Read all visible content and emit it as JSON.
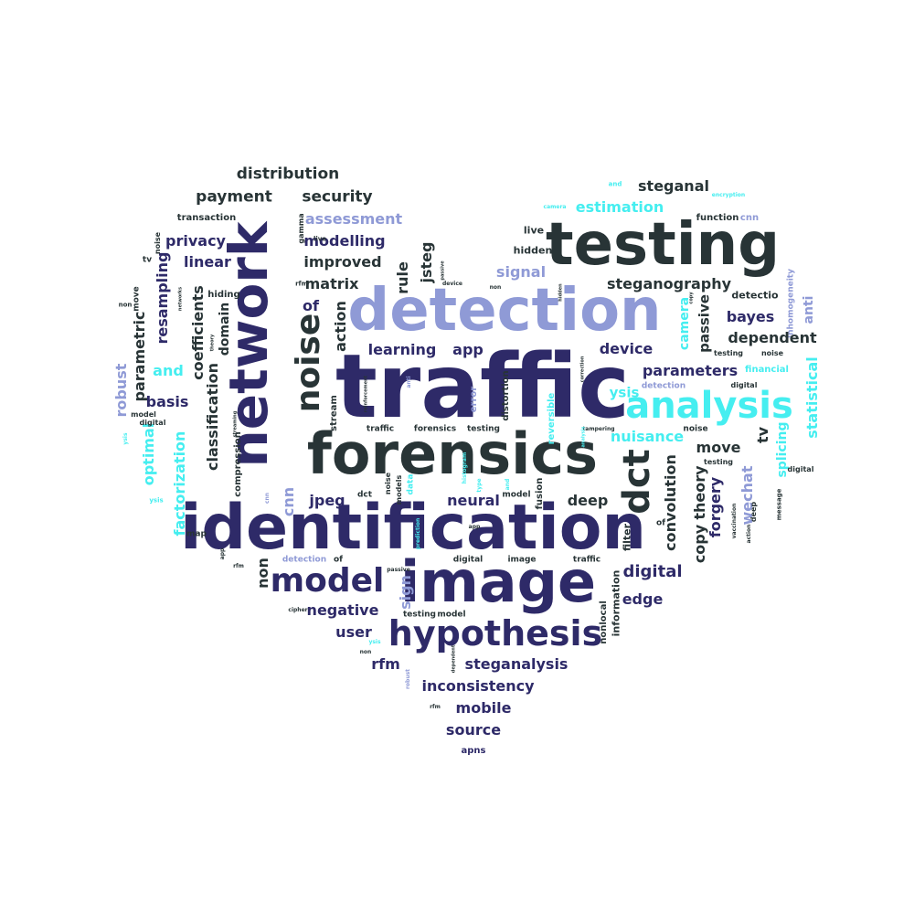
{
  "palette": {
    "navy": "#2e2a68",
    "dark": "#283436",
    "periwinkle": "#8f9ad6",
    "cyan": "#45eef0"
  },
  "words": [
    {
      "text": "traffic",
      "color": "navy",
      "size": 96,
      "rotated": false
    },
    {
      "text": "identification",
      "color": "navy",
      "size": 68,
      "rotated": false
    },
    {
      "text": "image",
      "color": "navy",
      "size": 62,
      "rotated": false
    },
    {
      "text": "forensics",
      "color": "dark",
      "size": 62,
      "rotated": false
    },
    {
      "text": "detection",
      "color": "periwinkle",
      "size": 64,
      "rotated": false
    },
    {
      "text": "testing",
      "color": "dark",
      "size": 64,
      "rotated": false
    },
    {
      "text": "network",
      "color": "navy",
      "size": 58,
      "rotated": true
    },
    {
      "text": "hypothesis",
      "color": "navy",
      "size": 38,
      "rotated": false
    },
    {
      "text": "model",
      "color": "navy",
      "size": 36,
      "rotated": false
    },
    {
      "text": "analysis",
      "color": "cyan",
      "size": 40,
      "rotated": false
    },
    {
      "text": "noise",
      "color": "dark",
      "size": 36,
      "rotated": true
    },
    {
      "text": "dct",
      "color": "dark",
      "size": 40,
      "rotated": true
    },
    {
      "text": "distribution",
      "color": "dark",
      "size": 17,
      "rotated": false
    },
    {
      "text": "payment",
      "color": "dark",
      "size": 17,
      "rotated": false
    },
    {
      "text": "security",
      "color": "dark",
      "size": 17,
      "rotated": false
    },
    {
      "text": "assessment",
      "color": "periwinkle",
      "size": 16,
      "rotated": false
    },
    {
      "text": "transaction",
      "color": "dark",
      "size": 10,
      "rotated": false
    },
    {
      "text": "privacy",
      "color": "navy",
      "size": 16,
      "rotated": false
    },
    {
      "text": "modelling",
      "color": "navy",
      "size": 16,
      "rotated": false
    },
    {
      "text": "improved",
      "color": "dark",
      "size": 16,
      "rotated": false
    },
    {
      "text": "linear",
      "color": "navy",
      "size": 16,
      "rotated": false
    },
    {
      "text": "matrix",
      "color": "dark",
      "size": 16,
      "rotated": false
    },
    {
      "text": "jsteg",
      "color": "dark",
      "size": 16,
      "rotated": true
    },
    {
      "text": "rule",
      "color": "dark",
      "size": 16,
      "rotated": true
    },
    {
      "text": "hiding",
      "color": "dark",
      "size": 10,
      "rotated": false
    },
    {
      "text": "coefficients",
      "color": "dark",
      "size": 16,
      "rotated": true
    },
    {
      "text": "resampling",
      "color": "navy",
      "size": 16,
      "rotated": true
    },
    {
      "text": "parametric",
      "color": "dark",
      "size": 16,
      "rotated": true
    },
    {
      "text": "domain",
      "color": "dark",
      "size": 14,
      "rotated": true
    },
    {
      "text": "classification",
      "color": "dark",
      "size": 16,
      "rotated": true
    },
    {
      "text": "and",
      "color": "cyan",
      "size": 16,
      "rotated": false
    },
    {
      "text": "robust",
      "color": "periwinkle",
      "size": 16,
      "rotated": true
    },
    {
      "text": "basis",
      "color": "navy",
      "size": 16,
      "rotated": false
    },
    {
      "text": "factorization",
      "color": "cyan",
      "size": 16,
      "rotated": true
    },
    {
      "text": "optimal",
      "color": "cyan",
      "size": 16,
      "rotated": true
    },
    {
      "text": "of",
      "color": "navy",
      "size": 16,
      "rotated": false
    },
    {
      "text": "action",
      "color": "dark",
      "size": 16,
      "rotated": true
    },
    {
      "text": "learning",
      "color": "navy",
      "size": 16,
      "rotated": false
    },
    {
      "text": "app",
      "color": "navy",
      "size": 16,
      "rotated": false
    },
    {
      "text": "signal",
      "color": "periwinkle",
      "size": 16,
      "rotated": false
    },
    {
      "text": "steganography",
      "color": "dark",
      "size": 16,
      "rotated": false
    },
    {
      "text": "estimation",
      "color": "cyan",
      "size": 16,
      "rotated": false
    },
    {
      "text": "steganal",
      "color": "dark",
      "size": 16,
      "rotated": false
    },
    {
      "text": "live",
      "color": "dark",
      "size": 11,
      "rotated": false
    },
    {
      "text": "hidden",
      "color": "dark",
      "size": 11,
      "rotated": false
    },
    {
      "text": "function",
      "color": "dark",
      "size": 10,
      "rotated": false
    },
    {
      "text": "cnn",
      "color": "periwinkle",
      "size": 10,
      "rotated": false
    },
    {
      "text": "inhomogeneity",
      "color": "periwinkle",
      "size": 9,
      "rotated": true
    },
    {
      "text": "anti",
      "color": "periwinkle",
      "size": 14,
      "rotated": true
    },
    {
      "text": "detectio",
      "color": "dark",
      "size": 11,
      "rotated": false
    },
    {
      "text": "camera",
      "color": "cyan",
      "size": 14,
      "rotated": true
    },
    {
      "text": "passive",
      "color": "dark",
      "size": 15,
      "rotated": true
    },
    {
      "text": "bayes",
      "color": "navy",
      "size": 16,
      "rotated": false
    },
    {
      "text": "dependent",
      "color": "dark",
      "size": 16,
      "rotated": false
    },
    {
      "text": "device",
      "color": "navy",
      "size": 16,
      "rotated": false
    },
    {
      "text": "parameters",
      "color": "navy",
      "size": 16,
      "rotated": false
    },
    {
      "text": "financial",
      "color": "cyan",
      "size": 10,
      "rotated": false
    },
    {
      "text": "statistical",
      "color": "cyan",
      "size": 16,
      "rotated": true
    },
    {
      "text": "ysis",
      "color": "cyan",
      "size": 15,
      "rotated": false
    },
    {
      "text": "nuisance",
      "color": "cyan",
      "size": 16,
      "rotated": false
    },
    {
      "text": "tv",
      "color": "dark",
      "size": 16,
      "rotated": true
    },
    {
      "text": "move",
      "color": "dark",
      "size": 16,
      "rotated": false
    },
    {
      "text": "splicing",
      "color": "cyan",
      "size": 14,
      "rotated": true
    },
    {
      "text": "convolution",
      "color": "dark",
      "size": 16,
      "rotated": true
    },
    {
      "text": "theory",
      "color": "dark",
      "size": 16,
      "rotated": true
    },
    {
      "text": "forgery",
      "color": "navy",
      "size": 16,
      "rotated": true
    },
    {
      "text": "wechat",
      "color": "periwinkle",
      "size": 16,
      "rotated": true
    },
    {
      "text": "copy",
      "color": "dark",
      "size": 16,
      "rotated": true
    },
    {
      "text": "deep",
      "color": "dark",
      "size": 16,
      "rotated": false
    },
    {
      "text": "neural",
      "color": "navy",
      "size": 16,
      "rotated": false
    },
    {
      "text": "jpeg",
      "color": "navy",
      "size": 16,
      "rotated": false
    },
    {
      "text": "cnn",
      "color": "periwinkle",
      "size": 16,
      "rotated": true
    },
    {
      "text": "digital",
      "color": "navy",
      "size": 18,
      "rotated": false
    },
    {
      "text": "edge",
      "color": "navy",
      "size": 16,
      "rotated": false
    },
    {
      "text": "negative",
      "color": "navy",
      "size": 16,
      "rotated": false
    },
    {
      "text": "user",
      "color": "navy",
      "size": 16,
      "rotated": false
    },
    {
      "text": "rfm",
      "color": "navy",
      "size": 16,
      "rotated": false
    },
    {
      "text": "steganalysis",
      "color": "navy",
      "size": 16,
      "rotated": false
    },
    {
      "text": "inconsistency",
      "color": "navy",
      "size": 16,
      "rotated": false
    },
    {
      "text": "mobile",
      "color": "navy",
      "size": 16,
      "rotated": false
    },
    {
      "text": "source",
      "color": "navy",
      "size": 16,
      "rotated": false
    },
    {
      "text": "apns",
      "color": "navy",
      "size": 10,
      "rotated": false
    },
    {
      "text": "non",
      "color": "dark",
      "size": 16,
      "rotated": true
    },
    {
      "text": "sign",
      "color": "periwinkle",
      "size": 16,
      "rotated": true
    },
    {
      "text": "information",
      "color": "dark",
      "size": 11,
      "rotated": true
    },
    {
      "text": "nonlocal",
      "color": "dark",
      "size": 10,
      "rotated": true
    },
    {
      "text": "filter",
      "color": "dark",
      "size": 11,
      "rotated": true
    },
    {
      "text": "error",
      "color": "periwinkle",
      "size": 10,
      "rotated": true
    },
    {
      "text": "distortion",
      "color": "dark",
      "size": 10,
      "rotated": true
    },
    {
      "text": "reversible",
      "color": "cyan",
      "size": 10,
      "rotated": true
    },
    {
      "text": "stream",
      "color": "dark",
      "size": 10,
      "rotated": true
    },
    {
      "text": "fusion",
      "color": "dark",
      "size": 10,
      "rotated": true
    },
    {
      "text": "compression",
      "color": "dark",
      "size": 10,
      "rotated": true
    },
    {
      "text": "testing",
      "color": "dark",
      "size": 9,
      "rotated": false
    },
    {
      "text": "forensics",
      "color": "dark",
      "size": 9,
      "rotated": false
    },
    {
      "text": "traffic",
      "color": "dark",
      "size": 9,
      "rotated": false
    },
    {
      "text": "noise",
      "color": "dark",
      "size": 9,
      "rotated": false
    },
    {
      "text": "detection",
      "color": "periwinkle",
      "size": 9,
      "rotated": false
    },
    {
      "text": "testing",
      "color": "dark",
      "size": 9,
      "rotated": false
    },
    {
      "text": "model",
      "color": "dark",
      "size": 9,
      "rotated": false
    },
    {
      "text": "digital",
      "color": "dark",
      "size": 9,
      "rotated": false
    },
    {
      "text": "image",
      "color": "dark",
      "size": 9,
      "rotated": false
    },
    {
      "text": "traffic",
      "color": "dark",
      "size": 9,
      "rotated": false
    },
    {
      "text": "detection",
      "color": "periwinkle",
      "size": 9,
      "rotated": false
    },
    {
      "text": "map",
      "color": "dark",
      "size": 9,
      "rotated": false
    },
    {
      "text": "dct",
      "color": "dark",
      "size": 9,
      "rotated": false
    },
    {
      "text": "model",
      "color": "dark",
      "size": 9,
      "rotated": false
    },
    {
      "text": "tv",
      "color": "dark",
      "size": 9,
      "rotated": false
    },
    {
      "text": "non",
      "color": "dark",
      "size": 7,
      "rotated": false
    },
    {
      "text": "move",
      "color": "dark",
      "size": 9,
      "rotated": true
    },
    {
      "text": "noise",
      "color": "dark",
      "size": 8,
      "rotated": true
    },
    {
      "text": "gamma",
      "color": "dark",
      "size": 8,
      "rotated": true
    },
    {
      "text": "live",
      "color": "dark",
      "size": 7,
      "rotated": false
    },
    {
      "text": "rfm",
      "color": "dark",
      "size": 7,
      "rotated": false
    },
    {
      "text": "of",
      "color": "dark",
      "size": 9,
      "rotated": false
    },
    {
      "text": "model",
      "color": "dark",
      "size": 8,
      "rotated": false
    },
    {
      "text": "digital",
      "color": "dark",
      "size": 8,
      "rotated": false
    },
    {
      "text": "ysis",
      "color": "cyan",
      "size": 7,
      "rotated": false
    },
    {
      "text": "and",
      "color": "cyan",
      "size": 7,
      "rotated": false
    },
    {
      "text": "encryption",
      "color": "cyan",
      "size": 6,
      "rotated": false
    },
    {
      "text": "camera",
      "color": "cyan",
      "size": 6,
      "rotated": false
    },
    {
      "text": "device",
      "color": "dark",
      "size": 6,
      "rotated": false
    },
    {
      "text": "non",
      "color": "dark",
      "size": 6,
      "rotated": false
    },
    {
      "text": "testing",
      "color": "dark",
      "size": 8,
      "rotated": false
    },
    {
      "text": "noise",
      "color": "dark",
      "size": 8,
      "rotated": false
    },
    {
      "text": "digital",
      "color": "dark",
      "size": 8,
      "rotated": false
    },
    {
      "text": "testing",
      "color": "dark",
      "size": 8,
      "rotated": false
    },
    {
      "text": "digital",
      "color": "dark",
      "size": 8,
      "rotated": false
    },
    {
      "text": "message",
      "color": "dark",
      "size": 7,
      "rotated": true
    },
    {
      "text": "deep",
      "color": "dark",
      "size": 8,
      "rotated": true
    },
    {
      "text": "vaccination",
      "color": "dark",
      "size": 6,
      "rotated": true
    },
    {
      "text": "action",
      "color": "dark",
      "size": 6,
      "rotated": true
    },
    {
      "text": "tampering",
      "color": "dark",
      "size": 6,
      "rotated": false
    },
    {
      "text": "of",
      "color": "dark",
      "size": 9,
      "rotated": false
    },
    {
      "text": "histogram",
      "color": "cyan",
      "size": 6,
      "rotated": true
    },
    {
      "text": "data",
      "color": "cyan",
      "size": 9,
      "rotated": true
    },
    {
      "text": "models",
      "color": "dark",
      "size": 8,
      "rotated": true
    },
    {
      "text": "noise",
      "color": "dark",
      "size": 8,
      "rotated": true
    },
    {
      "text": "prediction",
      "color": "cyan",
      "size": 6,
      "rotated": true
    },
    {
      "text": "app",
      "color": "dark",
      "size": 6,
      "rotated": false
    },
    {
      "text": "app",
      "color": "dark",
      "size": 6,
      "rotated": true
    },
    {
      "text": "rfm",
      "color": "dark",
      "size": 6,
      "rotated": false
    },
    {
      "text": "cipher",
      "color": "dark",
      "size": 6,
      "rotated": false
    },
    {
      "text": "ysis",
      "color": "cyan",
      "size": 6,
      "rotated": false
    },
    {
      "text": "non",
      "color": "dark",
      "size": 6,
      "rotated": false
    },
    {
      "text": "rfm",
      "color": "dark",
      "size": 6,
      "rotated": false
    },
    {
      "text": "passive",
      "color": "dark",
      "size": 6,
      "rotated": false
    },
    {
      "text": "robust",
      "color": "periwinkle",
      "size": 6,
      "rotated": true
    },
    {
      "text": "dependent",
      "color": "dark",
      "size": 5,
      "rotated": true
    },
    {
      "text": "ysis",
      "color": "cyan",
      "size": 6,
      "rotated": true
    },
    {
      "text": "streaming",
      "color": "dark",
      "size": 5,
      "rotated": true
    },
    {
      "text": "reinforcement",
      "color": "dark",
      "size": 5,
      "rotated": true
    },
    {
      "text": "theory",
      "color": "dark",
      "size": 5,
      "rotated": true
    },
    {
      "text": "analysis",
      "color": "cyan",
      "size": 5,
      "rotated": true
    },
    {
      "text": "correction",
      "color": "dark",
      "size": 5,
      "rotated": true
    },
    {
      "text": "hidden",
      "color": "dark",
      "size": 5,
      "rotated": true
    },
    {
      "text": "passive",
      "color": "dark",
      "size": 5,
      "rotated": true
    },
    {
      "text": "copy",
      "color": "dark",
      "size": 5,
      "rotated": true
    },
    {
      "text": "networks",
      "color": "dark",
      "size": 5,
      "rotated": true
    },
    {
      "text": "anti",
      "color": "periwinkle",
      "size": 6,
      "rotated": true
    },
    {
      "text": "cnn",
      "color": "periwinkle",
      "size": 6,
      "rotated": true
    },
    {
      "text": "type",
      "color": "cyan",
      "size": 6,
      "rotated": true
    },
    {
      "text": "and",
      "color": "cyan",
      "size": 6,
      "rotated": true
    },
    {
      "text": "ysis",
      "color": "cyan",
      "size": 5,
      "rotated": true
    }
  ]
}
